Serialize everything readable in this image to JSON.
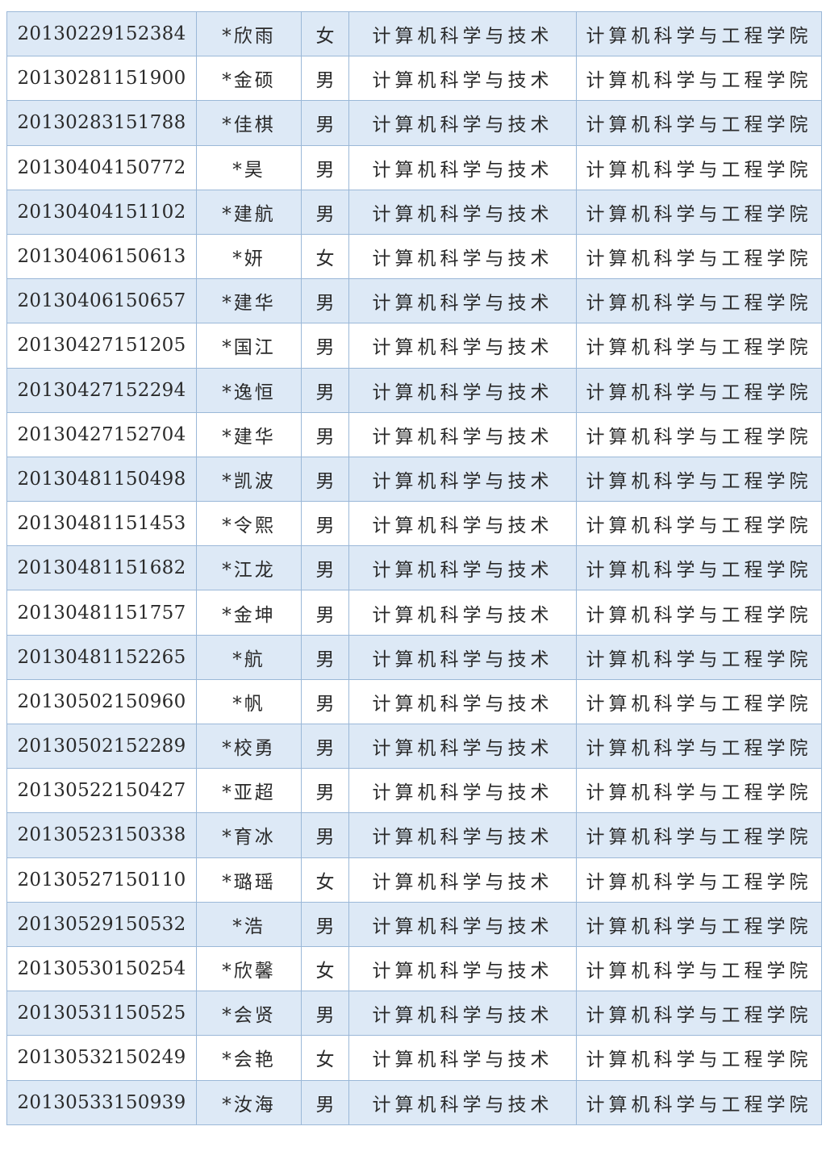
{
  "colors": {
    "stripe": "#dde9f6",
    "border": "#9bb8d8",
    "text": "#2a2a2a"
  },
  "table": {
    "rows": [
      [
        "20130229152384",
        "*欣雨",
        "女",
        "计算机科学与技术",
        "计算机科学与工程学院"
      ],
      [
        "20130281151900",
        "*金硕",
        "男",
        "计算机科学与技术",
        "计算机科学与工程学院"
      ],
      [
        "20130283151788",
        "*佳棋",
        "男",
        "计算机科学与技术",
        "计算机科学与工程学院"
      ],
      [
        "20130404150772",
        "*昊",
        "男",
        "计算机科学与技术",
        "计算机科学与工程学院"
      ],
      [
        "20130404151102",
        "*建航",
        "男",
        "计算机科学与技术",
        "计算机科学与工程学院"
      ],
      [
        "20130406150613",
        "*妍",
        "女",
        "计算机科学与技术",
        "计算机科学与工程学院"
      ],
      [
        "20130406150657",
        "*建华",
        "男",
        "计算机科学与技术",
        "计算机科学与工程学院"
      ],
      [
        "20130427151205",
        "*国江",
        "男",
        "计算机科学与技术",
        "计算机科学与工程学院"
      ],
      [
        "20130427152294",
        "*逸恒",
        "男",
        "计算机科学与技术",
        "计算机科学与工程学院"
      ],
      [
        "20130427152704",
        "*建华",
        "男",
        "计算机科学与技术",
        "计算机科学与工程学院"
      ],
      [
        "20130481150498",
        "*凯波",
        "男",
        "计算机科学与技术",
        "计算机科学与工程学院"
      ],
      [
        "20130481151453",
        "*令熙",
        "男",
        "计算机科学与技术",
        "计算机科学与工程学院"
      ],
      [
        "20130481151682",
        "*江龙",
        "男",
        "计算机科学与技术",
        "计算机科学与工程学院"
      ],
      [
        "20130481151757",
        "*金坤",
        "男",
        "计算机科学与技术",
        "计算机科学与工程学院"
      ],
      [
        "20130481152265",
        "*航",
        "男",
        "计算机科学与技术",
        "计算机科学与工程学院"
      ],
      [
        "20130502150960",
        "*帆",
        "男",
        "计算机科学与技术",
        "计算机科学与工程学院"
      ],
      [
        "20130502152289",
        "*校勇",
        "男",
        "计算机科学与技术",
        "计算机科学与工程学院"
      ],
      [
        "20130522150427",
        "*亚超",
        "男",
        "计算机科学与技术",
        "计算机科学与工程学院"
      ],
      [
        "20130523150338",
        "*育冰",
        "男",
        "计算机科学与技术",
        "计算机科学与工程学院"
      ],
      [
        "20130527150110",
        "*璐瑶",
        "女",
        "计算机科学与技术",
        "计算机科学与工程学院"
      ],
      [
        "20130529150532",
        "*浩",
        "男",
        "计算机科学与技术",
        "计算机科学与工程学院"
      ],
      [
        "20130530150254",
        "*欣馨",
        "女",
        "计算机科学与技术",
        "计算机科学与工程学院"
      ],
      [
        "20130531150525",
        "*会贤",
        "男",
        "计算机科学与技术",
        "计算机科学与工程学院"
      ],
      [
        "20130532150249",
        "*会艳",
        "女",
        "计算机科学与技术",
        "计算机科学与工程学院"
      ],
      [
        "20130533150939",
        "*汝海",
        "男",
        "计算机科学与技术",
        "计算机科学与工程学院"
      ]
    ]
  }
}
